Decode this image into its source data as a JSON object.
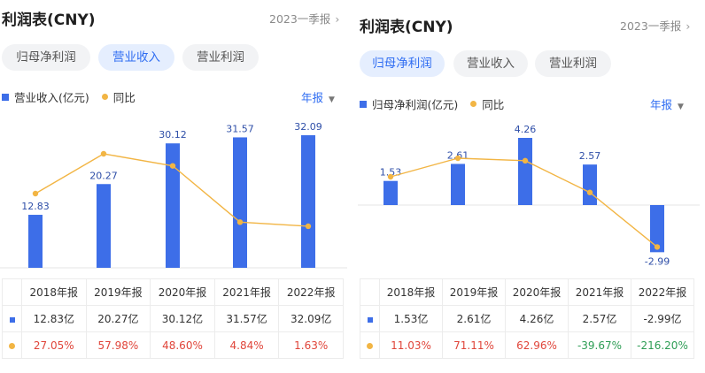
{
  "left": {
    "title": "利润表(CNY)",
    "period": "2023一季报",
    "tabs": [
      {
        "label": "归母净利润",
        "active": false
      },
      {
        "label": "营业收入",
        "active": true
      },
      {
        "label": "营业利润",
        "active": false
      }
    ],
    "legend": {
      "bar": "营业收入(亿元)",
      "line": "同比"
    },
    "frequency": "年报",
    "table": {
      "headers": [
        "2018年报",
        "2019年报",
        "2020年报",
        "2021年报",
        "2022年报"
      ],
      "values": [
        "12.83亿",
        "20.27亿",
        "30.12亿",
        "31.57亿",
        "32.09亿"
      ],
      "yoy": [
        "27.05%",
        "57.98%",
        "48.60%",
        "4.84%",
        "1.63%"
      ]
    }
  },
  "right": {
    "title": "利润表(CNY)",
    "period": "2023一季报",
    "tabs": [
      {
        "label": "归母净利润",
        "active": true
      },
      {
        "label": "营业收入",
        "active": false
      },
      {
        "label": "营业利润",
        "active": false
      }
    ],
    "legend": {
      "bar": "归母净利润(亿元)",
      "line": "同比"
    },
    "frequency": "年报",
    "table": {
      "headers": [
        "2018年报",
        "2019年报",
        "2020年报",
        "2021年报",
        "2022年报"
      ],
      "values": [
        "1.53亿",
        "2.61亿",
        "4.26亿",
        "2.57亿",
        "-2.99亿"
      ],
      "yoy": [
        "11.03%",
        "71.11%",
        "62.96%",
        "-39.67%",
        "-216.20%"
      ]
    }
  },
  "chart_data": [
    {
      "type": "bar",
      "categories": [
        "2018年报",
        "2019年报",
        "2020年报",
        "2021年报",
        "2022年报"
      ],
      "series": [
        {
          "name": "营业收入(亿元)",
          "type": "bar",
          "values": [
            12.83,
            20.27,
            30.12,
            31.57,
            32.09
          ],
          "labels": [
            "12.83",
            "20.27",
            "30.12",
            "31.57",
            "32.09"
          ]
        },
        {
          "name": "同比",
          "type": "line",
          "unit": "%",
          "values": [
            27.05,
            57.98,
            48.6,
            4.84,
            1.63
          ]
        }
      ],
      "colors": {
        "bar": "#3d6ee8",
        "line": "#f2b544"
      }
    },
    {
      "type": "bar",
      "categories": [
        "2018年报",
        "2019年报",
        "2020年报",
        "2021年报",
        "2022年报"
      ],
      "series": [
        {
          "name": "归母净利润(亿元)",
          "type": "bar",
          "values": [
            1.53,
            2.61,
            4.26,
            2.57,
            -2.99
          ],
          "labels": [
            "1.53",
            "2.61",
            "4.26",
            "2.57",
            "-2.99"
          ]
        },
        {
          "name": "同比",
          "type": "line",
          "unit": "%",
          "values": [
            11.03,
            71.11,
            62.96,
            -39.67,
            -216.2
          ]
        }
      ],
      "colors": {
        "bar": "#3d6ee8",
        "line": "#f2b544"
      }
    }
  ]
}
